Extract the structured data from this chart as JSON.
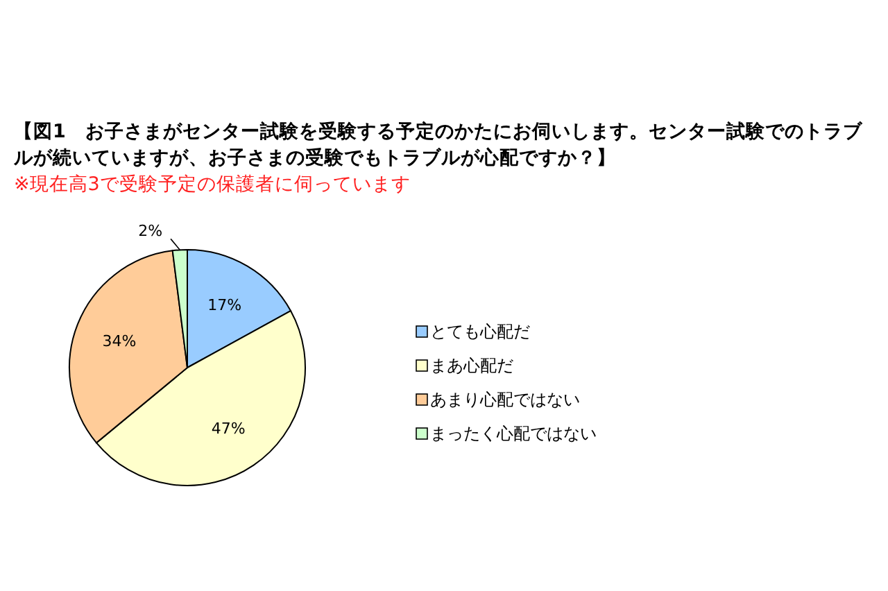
{
  "chart_data": {
    "type": "pie",
    "title": "【図1　お子さまがセンター試験を受験する予定のかたにお伺いします。センター試験でのトラブルが続いていますが、お子さまの受験でもトラブルが心配ですか？】",
    "subtitle": "※現在高3で受験予定の保護者に伺っています",
    "categories": [
      "とても心配だ",
      "まあ心配だ",
      "あまり心配ではない",
      "まったく心配ではない"
    ],
    "values": [
      17,
      47,
      34,
      2
    ],
    "value_labels": [
      "17%",
      "47%",
      "34%",
      "2%"
    ],
    "colors": [
      "#99ccff",
      "#ffffcc",
      "#ffcc99",
      "#ccffcc"
    ],
    "legend": "right"
  }
}
